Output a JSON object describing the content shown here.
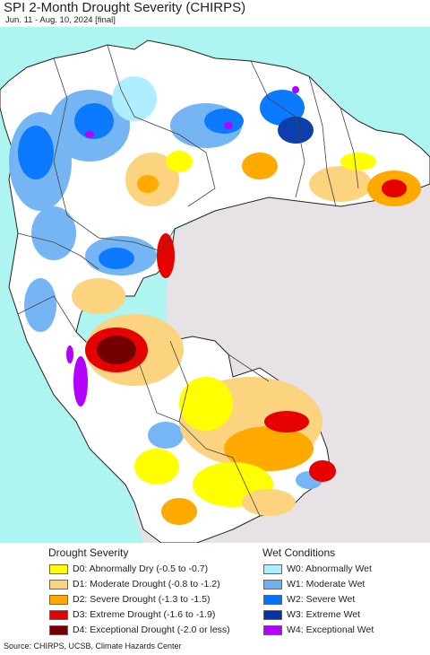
{
  "title": "SPI 2-Month Drought Severity (CHIRPS)",
  "subtitle": "Jun. 11 - Aug. 10, 2024 [final]",
  "colors": {
    "ocean": "#aef4f0",
    "no_data_land": "#e8e4e8",
    "normal": "#ffffff",
    "border": "#444444",
    "coast": "#222222"
  },
  "legend": {
    "drought_title": "Drought Severity",
    "wet_title": "Wet Conditions",
    "drought": [
      {
        "label": "D0: Abnormally Dry (-0.5 to -0.7)",
        "color": "#ffff00"
      },
      {
        "label": "D1: Moderate Drought (-0.8 to -1.2)",
        "color": "#fcd37f"
      },
      {
        "label": "D2: Severe Drought (-1.3 to -1.5)",
        "color": "#ffaa00"
      },
      {
        "label": "D3: Extreme Drought (-1.6 to -1.9)",
        "color": "#e60000"
      },
      {
        "label": "D4: Exceptional Drought (-2.0 or less)",
        "color": "#730000"
      }
    ],
    "wet": [
      {
        "label": "W0: Abnormally Wet",
        "color": "#aaeeff"
      },
      {
        "label": "W1: Moderate Wet",
        "color": "#6fb2f4"
      },
      {
        "label": "W2: Severe Wet",
        "color": "#0073ff"
      },
      {
        "label": "W3: Extreme Wet",
        "color": "#0034a8"
      },
      {
        "label": "W4: Exceptional Wet",
        "color": "#b400ff"
      }
    ]
  },
  "source": "Source: CHIRPS, UCSB, Climate Hazards Center"
}
